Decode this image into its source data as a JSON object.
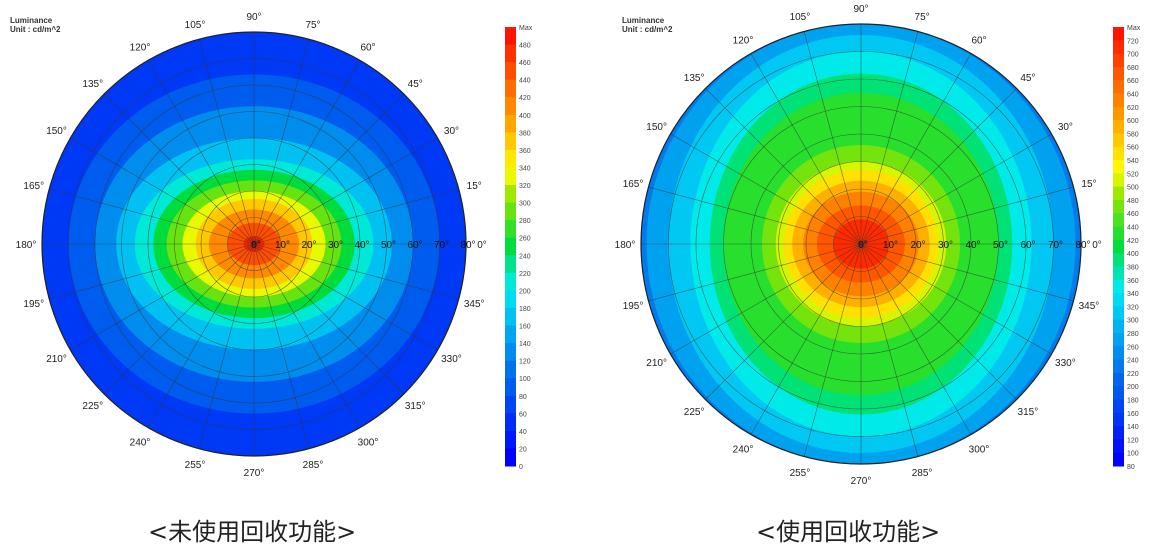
{
  "captions": [
    "<未使用回收功能>",
    "<使用回收功能>"
  ],
  "chart_data": [
    {
      "type": "heatmap",
      "subtype": "polar-luminance",
      "title_lines": [
        "Luminance",
        "Unit : cd/m^2"
      ],
      "angle_ticks": [
        "0°",
        "15°",
        "30°",
        "45°",
        "60°",
        "75°",
        "90°",
        "105°",
        "120°",
        "135°",
        "150°",
        "165°",
        "180°",
        "195°",
        "210°",
        "225°",
        "240°",
        "255°",
        "270°",
        "285°",
        "300°",
        "315°",
        "330°",
        "345°"
      ],
      "radial_ticks": [
        "0°",
        "10°",
        "20°",
        "30°",
        "40°",
        "50°",
        "60°",
        "70°",
        "80°"
      ],
      "radial_range": [
        0,
        80
      ],
      "colorbar": {
        "max_label": "Max",
        "min": 0,
        "max": 480,
        "step": 20
      },
      "contours": [
        {
          "level": 80,
          "h": 70,
          "v": 64
        },
        {
          "level": 120,
          "h": 60,
          "v": 52
        },
        {
          "level": 160,
          "h": 52,
          "v": 40
        },
        {
          "level": 200,
          "h": 45,
          "v": 32
        },
        {
          "level": 240,
          "h": 38,
          "v": 28
        },
        {
          "level": 280,
          "h": 33,
          "v": 24
        },
        {
          "level": 320,
          "h": 27,
          "v": 20
        },
        {
          "level": 360,
          "h": 22,
          "v": 17
        },
        {
          "level": 400,
          "h": 17,
          "v": 13
        },
        {
          "level": 440,
          "h": 10,
          "v": 8
        },
        {
          "level": 470,
          "h": 4,
          "v": 3
        }
      ],
      "background_level": 50
    },
    {
      "type": "heatmap",
      "subtype": "polar-luminance",
      "title_lines": [
        "Luminance",
        "Unit : cd/m^2"
      ],
      "angle_ticks": [
        "0°",
        "15°",
        "30°",
        "45°",
        "60°",
        "75°",
        "90°",
        "105°",
        "120°",
        "135°",
        "150°",
        "165°",
        "180°",
        "195°",
        "210°",
        "225°",
        "240°",
        "255°",
        "270°",
        "285°",
        "300°",
        "315°",
        "330°",
        "345°"
      ],
      "radial_ticks": [
        "0°",
        "10°",
        "20°",
        "30°",
        "40°",
        "50°",
        "60°",
        "70°",
        "80°"
      ],
      "radial_range": [
        0,
        80
      ],
      "colorbar": {
        "max_label": "Max",
        "min": 80,
        "max": 720,
        "step": 20
      },
      "contours": [
        {
          "level": 260,
          "h": 78,
          "v": 80
        },
        {
          "level": 300,
          "h": 70,
          "v": 76
        },
        {
          "level": 340,
          "h": 62,
          "v": 70
        },
        {
          "level": 380,
          "h": 55,
          "v": 62
        },
        {
          "level": 420,
          "h": 50,
          "v": 55
        },
        {
          "level": 460,
          "h": 36,
          "v": 36
        },
        {
          "level": 500,
          "h": 31,
          "v": 30
        },
        {
          "level": 540,
          "h": 28,
          "v": 27
        },
        {
          "level": 580,
          "h": 25,
          "v": 23
        },
        {
          "level": 620,
          "h": 21,
          "v": 19
        },
        {
          "level": 660,
          "h": 16,
          "v": 14
        },
        {
          "level": 700,
          "h": 10,
          "v": 9
        }
      ],
      "background_level": 220
    }
  ]
}
